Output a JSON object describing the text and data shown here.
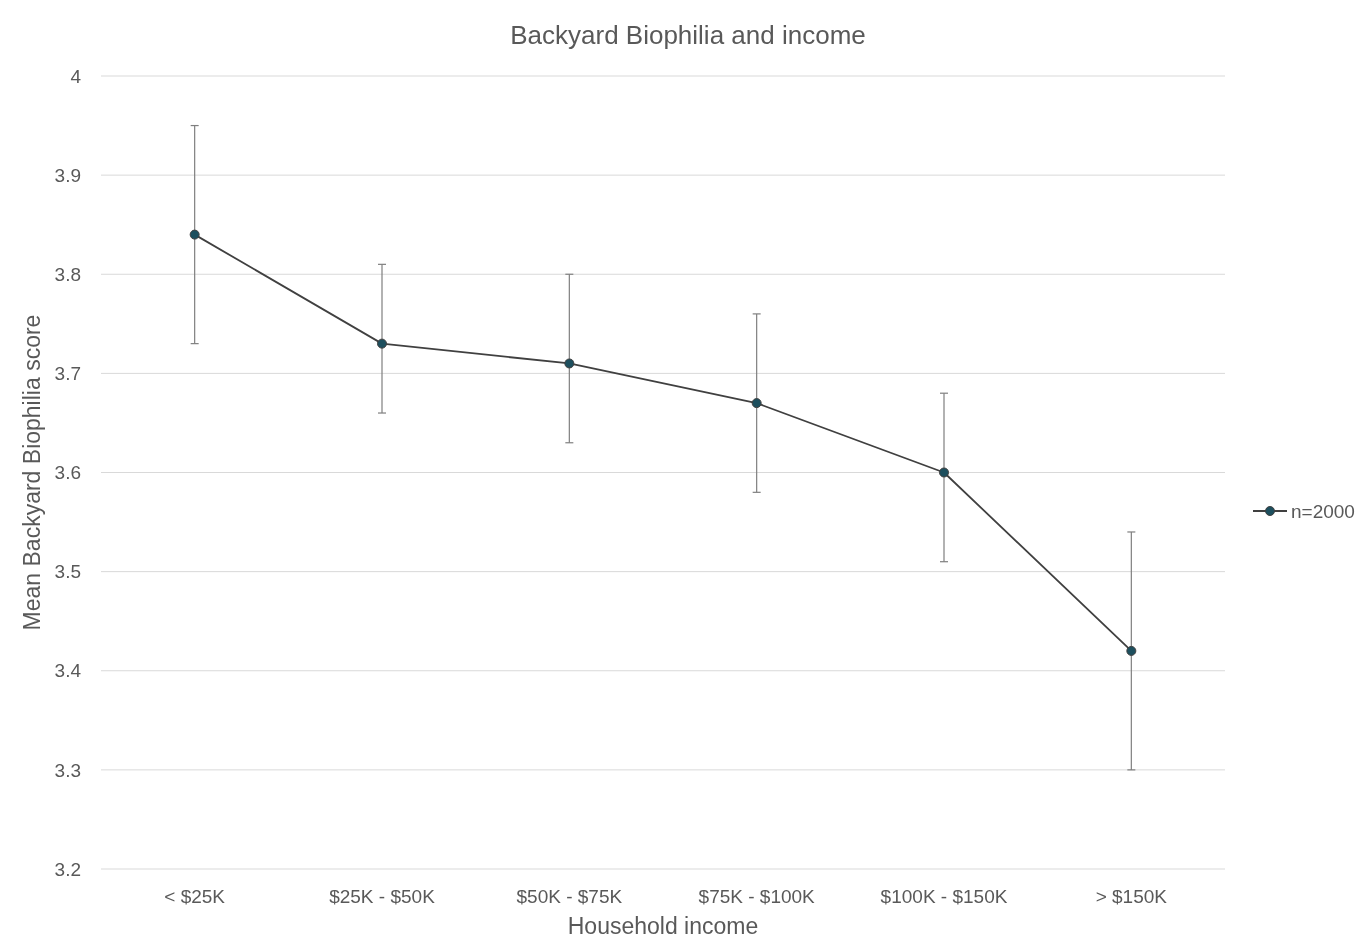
{
  "chart_data": {
    "type": "line",
    "title": "Backyard Biophilia and income",
    "xlabel": "Household income",
    "ylabel": "Mean Backyard Biophilia score",
    "categories": [
      "< $25K",
      "$25K - $50K",
      "$50K - $75K",
      "$75K - $100K",
      "$100K - $150K",
      "> $150K"
    ],
    "series": [
      {
        "name": "n=2000",
        "color": "#404040",
        "values": [
          3.84,
          3.73,
          3.71,
          3.67,
          3.6,
          3.42
        ],
        "errors": [
          [
            3.73,
            3.95
          ],
          [
            3.66,
            3.81
          ],
          [
            3.63,
            3.8
          ],
          [
            3.58,
            3.76
          ],
          [
            3.51,
            3.68
          ],
          [
            3.3,
            3.54
          ]
        ]
      }
    ],
    "ylim": [
      3.2,
      4
    ],
    "yticks": [
      3.2,
      3.3,
      3.4,
      3.5,
      3.6,
      3.7,
      3.8,
      3.9,
      4
    ],
    "grid": "y",
    "legend": "right",
    "marker": "circle",
    "line_style": "solid"
  }
}
